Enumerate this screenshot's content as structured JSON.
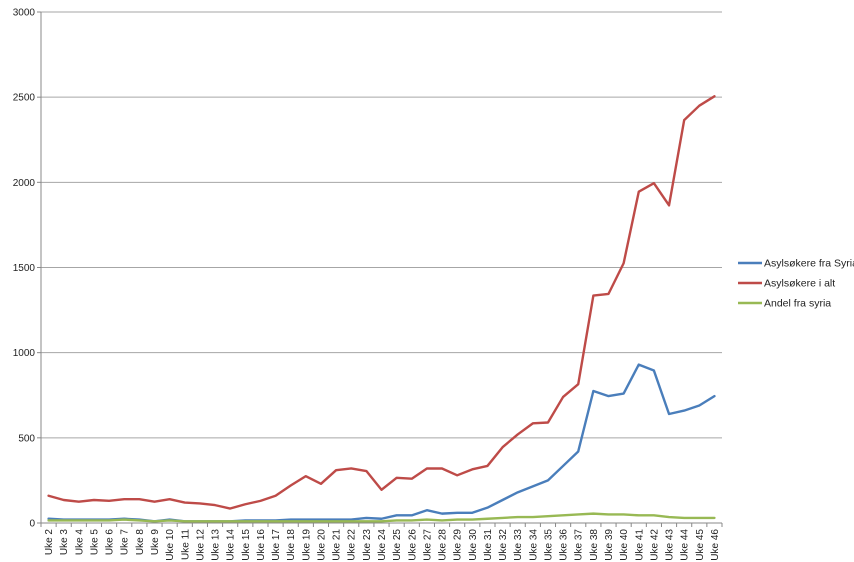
{
  "chart_data": {
    "type": "line",
    "title": "",
    "xlabel": "",
    "ylabel": "",
    "ylim": [
      0,
      3000
    ],
    "yticks": [
      0,
      500,
      1000,
      1500,
      2000,
      2500,
      3000
    ],
    "grid": true,
    "legend_position": "right",
    "categories": [
      "Uke 2",
      "Uke 3",
      "Uke 4",
      "Uke 5",
      "Uke 6",
      "Uke 7",
      "Uke 8",
      "Uke 9",
      "Uke 10",
      "Uke 11",
      "Uke 12",
      "Uke 13",
      "Uke 14",
      "Uke 15",
      "Uke 16",
      "Uke 17",
      "Uke 18",
      "Uke 19",
      "Uke 20",
      "Uke 21",
      "Uke 22",
      "Uke 23",
      "Uke 24",
      "Uke 25",
      "Uke 26",
      "Uke 27",
      "Uke 28",
      "Uke 29",
      "Uke 30",
      "Uke 31",
      "Uke 32",
      "Uke 33",
      "Uke 34",
      "Uke 35",
      "Uke 36",
      "Uke 37",
      "Uke 38",
      "Uke 39",
      "Uke 40",
      "Uke 41",
      "Uke 42",
      "Uke 43",
      "Uke 44",
      "Uke 45",
      "Uke 46"
    ],
    "series": [
      {
        "name": "Asylsøkere fra Syria",
        "color": "#4a7ebb",
        "values": [
          25,
          20,
          20,
          20,
          20,
          25,
          20,
          10,
          20,
          10,
          10,
          10,
          10,
          15,
          15,
          15,
          20,
          20,
          20,
          20,
          20,
          30,
          25,
          45,
          45,
          75,
          55,
          60,
          60,
          90,
          135,
          180,
          215,
          250,
          335,
          420,
          775,
          745,
          760,
          930,
          895,
          640,
          660,
          690,
          745
        ]
      },
      {
        "name": "Asylsøkere i alt",
        "color": "#be4b48",
        "values": [
          160,
          135,
          125,
          135,
          130,
          140,
          140,
          125,
          140,
          120,
          115,
          105,
          85,
          110,
          130,
          160,
          220,
          275,
          230,
          310,
          320,
          305,
          195,
          265,
          260,
          320,
          320,
          280,
          315,
          335,
          445,
          520,
          585,
          590,
          740,
          815,
          1335,
          1345,
          1525,
          1945,
          1995,
          1865,
          2365,
          2450,
          2505
        ]
      },
      {
        "name": "Andel fra syria",
        "color": "#98b954",
        "values": [
          15,
          15,
          15,
          15,
          15,
          20,
          15,
          10,
          15,
          10,
          10,
          10,
          10,
          10,
          10,
          10,
          10,
          10,
          10,
          10,
          10,
          10,
          10,
          15,
          15,
          20,
          15,
          20,
          20,
          25,
          30,
          35,
          35,
          40,
          45,
          50,
          55,
          50,
          50,
          45,
          45,
          35,
          30,
          30,
          30
        ]
      }
    ]
  }
}
